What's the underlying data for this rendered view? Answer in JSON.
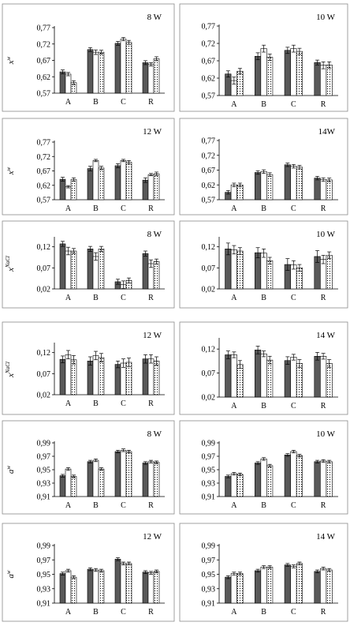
{
  "colors": {
    "dark": "#595959",
    "light": "#ffffff",
    "dotted": "#ffffff",
    "axis": "#000000",
    "frame": "#8a8a8a"
  },
  "chart_data": [
    {
      "type": "bar",
      "panel_label": "8 W",
      "ylabel": "x",
      "ylabel_sup": "w",
      "ylim": [
        0.57,
        0.77
      ],
      "yticks": [
        "0,57",
        "0,62",
        "0,67",
        "0,72",
        "0,77"
      ],
      "categories": [
        "A",
        "B",
        "C",
        "R"
      ],
      "series": [
        {
          "values": [
            0.635,
            0.703,
            0.722,
            0.663
          ],
          "errors": [
            0.006,
            0.006,
            0.006,
            0.006
          ]
        },
        {
          "values": [
            0.628,
            0.695,
            0.735,
            0.658
          ],
          "errors": [
            0.005,
            0.007,
            0.005,
            0.005
          ]
        },
        {
          "values": [
            0.602,
            0.695,
            0.725,
            0.675
          ],
          "errors": [
            0.006,
            0.006,
            0.006,
            0.006
          ]
        }
      ]
    },
    {
      "type": "bar",
      "panel_label": "10 W",
      "ylabel": "",
      "ylabel_sup": "",
      "ylim": [
        0.57,
        0.77
      ],
      "yticks": [
        "0,57",
        "0,62",
        "0,67",
        "0,72",
        "0,77"
      ],
      "categories": [
        "A",
        "B",
        "C",
        "R"
      ],
      "series": [
        {
          "values": [
            0.632,
            0.683,
            0.7,
            0.665
          ],
          "errors": [
            0.009,
            0.01,
            0.009,
            0.007
          ]
        },
        {
          "values": [
            0.613,
            0.705,
            0.705,
            0.657
          ],
          "errors": [
            0.01,
            0.01,
            0.01,
            0.01
          ]
        },
        {
          "values": [
            0.64,
            0.68,
            0.697,
            0.658
          ],
          "errors": [
            0.008,
            0.009,
            0.009,
            0.009
          ]
        }
      ]
    },
    {
      "type": "bar",
      "panel_label": "12 W",
      "ylabel": "x",
      "ylabel_sup": "w",
      "ylim": [
        0.57,
        0.77
      ],
      "yticks": [
        "0,57",
        "0,62",
        "0,67",
        "0,72",
        "0,77"
      ],
      "categories": [
        "A",
        "B",
        "C",
        "R"
      ],
      "series": [
        {
          "values": [
            0.641,
            0.678,
            0.688,
            0.638
          ],
          "errors": [
            0.007,
            0.008,
            0.007,
            0.008
          ]
        },
        {
          "values": [
            0.615,
            0.706,
            0.706,
            0.657
          ],
          "errors": [
            0.004,
            0.004,
            0.004,
            0.004
          ]
        },
        {
          "values": [
            0.64,
            0.68,
            0.7,
            0.66
          ],
          "errors": [
            0.006,
            0.006,
            0.006,
            0.006
          ]
        }
      ]
    },
    {
      "type": "bar",
      "panel_label": "14W",
      "ylabel": "",
      "ylabel_sup": "",
      "ylim": [
        0.57,
        0.77
      ],
      "yticks": [
        "0,57",
        "0,62",
        "0,67",
        "0,72",
        "0,77"
      ],
      "categories": [
        "A",
        "B",
        "C",
        "R"
      ],
      "series": [
        {
          "values": [
            0.595,
            0.662,
            0.688,
            0.643
          ],
          "errors": [
            0.006,
            0.006,
            0.006,
            0.006
          ]
        },
        {
          "values": [
            0.62,
            0.665,
            0.683,
            0.638
          ],
          "errors": [
            0.006,
            0.006,
            0.006,
            0.006
          ]
        },
        {
          "values": [
            0.62,
            0.655,
            0.68,
            0.637
          ],
          "errors": [
            0.006,
            0.006,
            0.006,
            0.006
          ]
        }
      ]
    },
    {
      "type": "bar",
      "panel_label": "8 W",
      "ylabel": "x",
      "ylabel_sup": "NaCl",
      "ylim": [
        0.02,
        0.14
      ],
      "yticks": [
        "0,02",
        "0,07",
        "0,12"
      ],
      "categories": [
        "A",
        "B",
        "C",
        "R"
      ],
      "series": [
        {
          "values": [
            0.127,
            0.115,
            0.037,
            0.104
          ],
          "errors": [
            0.006,
            0.006,
            0.006,
            0.006
          ]
        },
        {
          "values": [
            0.11,
            0.097,
            0.03,
            0.08
          ],
          "errors": [
            0.009,
            0.009,
            0.009,
            0.009
          ]
        },
        {
          "values": [
            0.11,
            0.115,
            0.04,
            0.085
          ],
          "errors": [
            0.006,
            0.006,
            0.006,
            0.006
          ]
        }
      ]
    },
    {
      "type": "bar",
      "panel_label": "10 W",
      "ylabel": "",
      "ylabel_sup": "",
      "ylim": [
        0.02,
        0.14
      ],
      "yticks": [
        "0,02",
        "0,07",
        "0,12"
      ],
      "categories": [
        "A",
        "B",
        "C",
        "R"
      ],
      "series": [
        {
          "values": [
            0.115,
            0.106,
            0.078,
            0.097
          ],
          "errors": [
            0.014,
            0.012,
            0.014,
            0.014
          ]
        },
        {
          "values": [
            0.113,
            0.105,
            0.077,
            0.09
          ],
          "errors": [
            0.01,
            0.01,
            0.01,
            0.01
          ]
        },
        {
          "values": [
            0.11,
            0.087,
            0.07,
            0.1
          ],
          "errors": [
            0.008,
            0.008,
            0.008,
            0.008
          ]
        }
      ]
    },
    {
      "type": "bar",
      "panel_label": "12 W",
      "ylabel": "x",
      "ylabel_sup": "NaCl",
      "ylim": [
        0.02,
        0.14
      ],
      "yticks": [
        "0,02",
        "0,07",
        "0,12"
      ],
      "categories": [
        "A",
        "B",
        "C",
        "R"
      ],
      "series": [
        {
          "values": [
            0.104,
            0.1,
            0.092,
            0.105
          ],
          "errors": [
            0.008,
            0.01,
            0.008,
            0.01
          ]
        },
        {
          "values": [
            0.115,
            0.113,
            0.095,
            0.105
          ],
          "errors": [
            0.01,
            0.01,
            0.01,
            0.01
          ]
        },
        {
          "values": [
            0.103,
            0.108,
            0.097,
            0.1
          ],
          "errors": [
            0.01,
            0.01,
            0.01,
            0.01
          ]
        }
      ]
    },
    {
      "type": "bar",
      "panel_label": "14 W",
      "ylabel": "",
      "ylabel_sup": "",
      "ylim": [
        0.02,
        0.14
      ],
      "yticks": [
        "0,02",
        "0,07",
        "0,12"
      ],
      "categories": [
        "A",
        "B",
        "C",
        "R"
      ],
      "series": [
        {
          "values": [
            0.108,
            0.118,
            0.096,
            0.105
          ],
          "errors": [
            0.008,
            0.008,
            0.008,
            0.008
          ]
        },
        {
          "values": [
            0.108,
            0.11,
            0.103,
            0.105
          ],
          "errors": [
            0.006,
            0.006,
            0.006,
            0.006
          ]
        },
        {
          "values": [
            0.088,
            0.097,
            0.09,
            0.09
          ],
          "errors": [
            0.008,
            0.008,
            0.008,
            0.008
          ]
        }
      ]
    },
    {
      "type": "bar",
      "panel_label": "8 W",
      "ylabel": "a",
      "ylabel_sup": "w",
      "ylim": [
        0.91,
        0.99
      ],
      "yticks": [
        "0,91",
        "0,93",
        "0,95",
        "0,97",
        "0,99"
      ],
      "categories": [
        "A",
        "B",
        "C",
        "R"
      ],
      "series": [
        {
          "values": [
            0.941,
            0.962,
            0.977,
            0.96
          ],
          "errors": [
            0.002,
            0.002,
            0.002,
            0.002
          ]
        },
        {
          "values": [
            0.951,
            0.964,
            0.979,
            0.962
          ],
          "errors": [
            0.002,
            0.002,
            0.002,
            0.002
          ]
        },
        {
          "values": [
            0.94,
            0.951,
            0.977,
            0.961
          ],
          "errors": [
            0.002,
            0.002,
            0.002,
            0.002
          ]
        }
      ]
    },
    {
      "type": "bar",
      "panel_label": "10 W",
      "ylabel": "",
      "ylabel_sup": "",
      "ylim": [
        0.91,
        0.99
      ],
      "yticks": [
        "0,91",
        "0,93",
        "0,95",
        "0,97",
        "0,99"
      ],
      "categories": [
        "A",
        "B",
        "C",
        "R"
      ],
      "series": [
        {
          "values": [
            0.94,
            0.96,
            0.972,
            0.962
          ],
          "errors": [
            0.002,
            0.002,
            0.002,
            0.002
          ]
        },
        {
          "values": [
            0.944,
            0.966,
            0.977,
            0.963
          ],
          "errors": [
            0.002,
            0.002,
            0.002,
            0.002
          ]
        },
        {
          "values": [
            0.943,
            0.956,
            0.971,
            0.962
          ],
          "errors": [
            0.002,
            0.002,
            0.002,
            0.002
          ]
        }
      ]
    },
    {
      "type": "bar",
      "panel_label": "12 W",
      "ylabel": "a",
      "ylabel_sup": "w",
      "ylim": [
        0.91,
        0.99
      ],
      "yticks": [
        "0,91",
        "0,93",
        "0,95",
        "0,97",
        "0,99"
      ],
      "categories": [
        "A",
        "B",
        "C",
        "R"
      ],
      "series": [
        {
          "values": [
            0.951,
            0.957,
            0.971,
            0.953
          ],
          "errors": [
            0.002,
            0.002,
            0.002,
            0.002
          ]
        },
        {
          "values": [
            0.955,
            0.956,
            0.965,
            0.952
          ],
          "errors": [
            0.002,
            0.002,
            0.002,
            0.002
          ]
        },
        {
          "values": [
            0.946,
            0.955,
            0.965,
            0.954
          ],
          "errors": [
            0.002,
            0.002,
            0.002,
            0.002
          ]
        }
      ]
    },
    {
      "type": "bar",
      "panel_label": "14 W",
      "ylabel": "",
      "ylabel_sup": "",
      "ylim": [
        0.91,
        0.99
      ],
      "yticks": [
        "0,91",
        "0,93",
        "0,95",
        "0,97",
        "0,99"
      ],
      "categories": [
        "A",
        "B",
        "C",
        "R"
      ],
      "series": [
        {
          "values": [
            0.946,
            0.955,
            0.963,
            0.954
          ],
          "errors": [
            0.002,
            0.002,
            0.002,
            0.002
          ]
        },
        {
          "values": [
            0.951,
            0.96,
            0.961,
            0.958
          ],
          "errors": [
            0.002,
            0.002,
            0.002,
            0.002
          ]
        },
        {
          "values": [
            0.951,
            0.96,
            0.965,
            0.956
          ],
          "errors": [
            0.002,
            0.002,
            0.002,
            0.002
          ]
        }
      ]
    }
  ]
}
